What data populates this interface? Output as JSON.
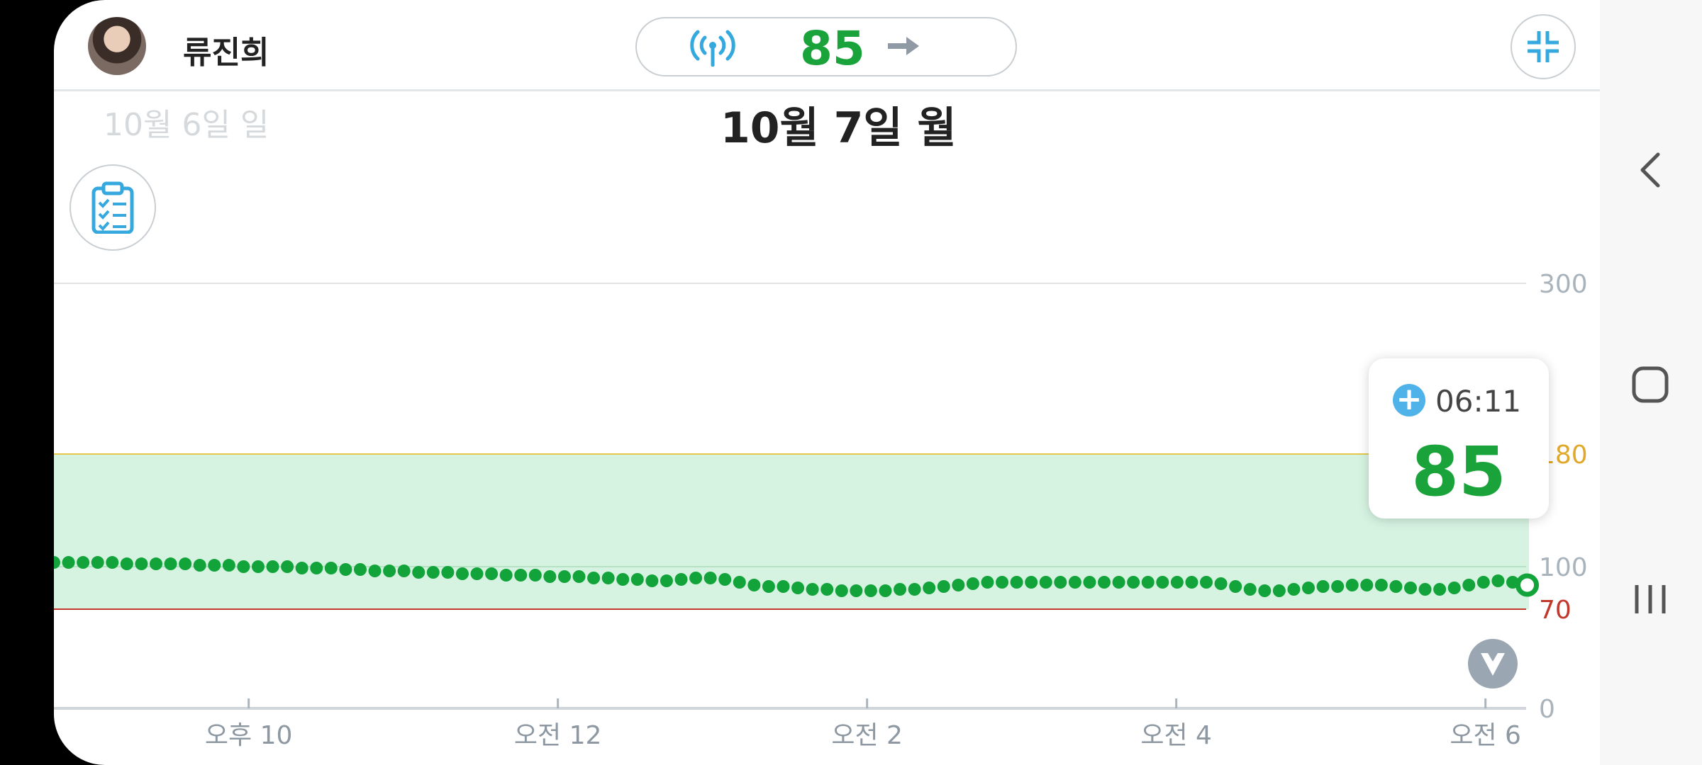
{
  "header": {
    "user_name": "류진희",
    "current_glucose": "85",
    "icons": {
      "signal": "signal-icon",
      "trend": "trend-arrow-right-icon",
      "collapse": "collapse-icon"
    }
  },
  "dates": {
    "previous": "10월 6일 일",
    "current": "10월 7일 월"
  },
  "tooltip": {
    "time": "06:11",
    "value": "85"
  },
  "colors": {
    "in_range_fill": "#d6f3e1",
    "high_line": "#e3c84a",
    "low_line": "#c0392b",
    "data_point": "#12a33a",
    "high_label": "#e0a92b",
    "low_label": "#c0392b"
  },
  "chart_data": {
    "type": "scatter",
    "x_ticks": [
      "오후 10",
      "오전 12",
      "오전 2",
      "오전 4",
      "오전 6"
    ],
    "x_start_hour": 20.74,
    "x_end_hour": 30.4,
    "y_ticks": [
      {
        "value": 300,
        "label": "300"
      },
      {
        "value": 180,
        "label": "180"
      },
      {
        "value": 100,
        "label": "100"
      },
      {
        "value": 70,
        "label": "70"
      },
      {
        "value": 0,
        "label": "0"
      }
    ],
    "high_threshold": 180,
    "low_threshold": 70,
    "series": [
      {
        "values": [
          103,
          103,
          103,
          103,
          103,
          102,
          102,
          102,
          102,
          102,
          101,
          101,
          101,
          100,
          100,
          100,
          100,
          99,
          99,
          99,
          98,
          98,
          97,
          97,
          97,
          96,
          96,
          96,
          95,
          95,
          95,
          94,
          94,
          94,
          93,
          93,
          93,
          92,
          92,
          91,
          91,
          90,
          90,
          91,
          92,
          92,
          91,
          89,
          87,
          86,
          86,
          85,
          84,
          84,
          83,
          83,
          83,
          83,
          84,
          84,
          85,
          86,
          87,
          88,
          89,
          89,
          89,
          89,
          89,
          89,
          89,
          89,
          89,
          89,
          89,
          89,
          89,
          89,
          89,
          89,
          88,
          86,
          84,
          83,
          83,
          84,
          85,
          86,
          86,
          87,
          87,
          87,
          86,
          85,
          84,
          84,
          85,
          87,
          89,
          90,
          89,
          87
        ]
      }
    ],
    "latest": {
      "time": "06:11",
      "value": 85
    }
  }
}
